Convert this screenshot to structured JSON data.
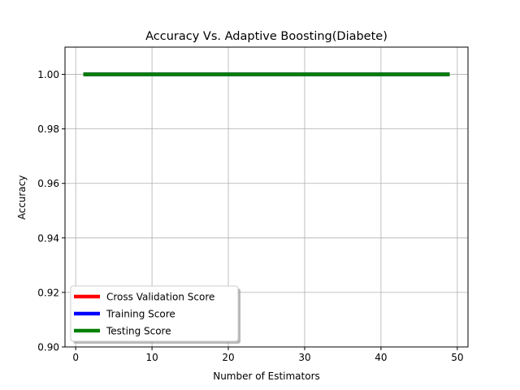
{
  "chart_data": {
    "type": "line",
    "title": "Accuracy Vs. Adaptive Boosting(Diabete)",
    "xlabel": "Number of Estimators",
    "ylabel": "Accuracy",
    "xlim": [
      -1.4,
      51.4
    ],
    "ylim": [
      0.9,
      1.01
    ],
    "xticks": [
      0,
      10,
      20,
      30,
      40,
      50
    ],
    "yticks": [
      0.9,
      0.92,
      0.94,
      0.96,
      0.98,
      1.0
    ],
    "xtick_labels": [
      "0",
      "10",
      "20",
      "30",
      "40",
      "50"
    ],
    "ytick_labels": [
      "0.90",
      "0.92",
      "0.94",
      "0.96",
      "0.98",
      "1.00"
    ],
    "grid": true,
    "legend_position": "lower-left",
    "series": [
      {
        "name": "Cross Validation Score",
        "color": "#ff0000",
        "x": [
          1,
          49
        ],
        "y": [
          1.0,
          1.0
        ]
      },
      {
        "name": "Training Score",
        "color": "#0000ff",
        "x": [
          1,
          49
        ],
        "y": [
          1.0,
          1.0
        ]
      },
      {
        "name": "Testing Score",
        "color": "#008000",
        "x": [
          1,
          49
        ],
        "y": [
          1.0,
          1.0
        ]
      }
    ]
  }
}
